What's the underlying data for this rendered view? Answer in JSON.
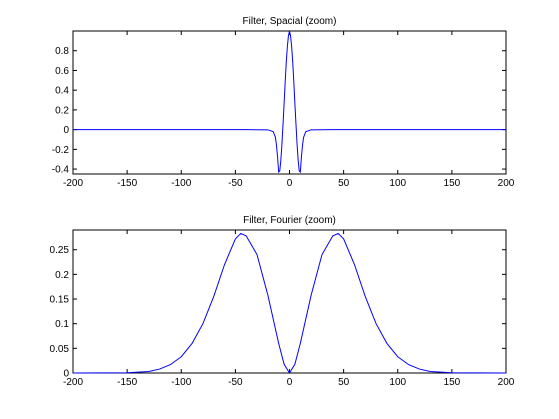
{
  "chart_data": [
    {
      "type": "line",
      "title": "Filter, Spacial (zoom)",
      "xlabel": "",
      "ylabel": "",
      "xlim": [
        -200,
        200
      ],
      "ylim": [
        -0.45,
        1.0
      ],
      "x_ticks": [
        -200,
        -150,
        -100,
        -50,
        0,
        50,
        100,
        150,
        200
      ],
      "y_ticks": [
        -0.4,
        -0.2,
        0,
        0.2,
        0.4,
        0.6,
        0.8
      ],
      "y_tick_labels": [
        "-0.4",
        "-0.2",
        "0",
        "0.2",
        "0.4",
        "0.6",
        "0.8"
      ],
      "grid": false,
      "line_color": "#0000ff",
      "series": [
        {
          "x": [
            -200,
            -100,
            -40,
            -20,
            -15,
            -13,
            -12,
            -11,
            -10,
            -9,
            -8,
            -7,
            -6,
            -5,
            -4,
            -3,
            -2,
            -1,
            0,
            1,
            2,
            3,
            4,
            5,
            6,
            7,
            8,
            9,
            10,
            11,
            12,
            13,
            15,
            20,
            40,
            100,
            200
          ],
          "y": [
            0,
            0,
            0,
            -0.002,
            -0.02,
            -0.08,
            -0.16,
            -0.28,
            -0.43,
            -0.42,
            -0.31,
            -0.15,
            0.05,
            0.26,
            0.48,
            0.68,
            0.84,
            0.95,
            1.0,
            0.95,
            0.84,
            0.68,
            0.48,
            0.26,
            0.05,
            -0.15,
            -0.31,
            -0.42,
            -0.43,
            -0.28,
            -0.16,
            -0.08,
            -0.02,
            -0.002,
            0,
            0,
            0
          ]
        }
      ]
    },
    {
      "type": "line",
      "title": "Filter, Fourier (zoom)",
      "xlabel": "",
      "ylabel": "",
      "xlim": [
        -200,
        200
      ],
      "ylim": [
        0,
        0.29
      ],
      "x_ticks": [
        -200,
        -150,
        -100,
        -50,
        0,
        50,
        100,
        150,
        200
      ],
      "y_ticks": [
        0,
        0.05,
        0.1,
        0.15,
        0.2,
        0.25
      ],
      "y_tick_labels": [
        "0",
        "0.05",
        "0.1",
        "0.15",
        "0.2",
        "0.25"
      ],
      "grid": false,
      "line_color": "#0000ff",
      "series": [
        {
          "x": [
            -200,
            -150,
            -130,
            -120,
            -110,
            -100,
            -90,
            -80,
            -70,
            -60,
            -50,
            -45,
            -40,
            -30,
            -20,
            -10,
            -5,
            0,
            5,
            10,
            20,
            30,
            40,
            45,
            50,
            60,
            70,
            80,
            90,
            100,
            110,
            120,
            130,
            150,
            200
          ],
          "y": [
            0,
            0.0005,
            0.003,
            0.008,
            0.017,
            0.033,
            0.06,
            0.1,
            0.155,
            0.22,
            0.272,
            0.283,
            0.278,
            0.24,
            0.158,
            0.06,
            0.018,
            0,
            0.018,
            0.06,
            0.158,
            0.24,
            0.278,
            0.283,
            0.272,
            0.22,
            0.155,
            0.1,
            0.06,
            0.033,
            0.017,
            0.008,
            0.003,
            0.0005,
            0
          ]
        }
      ]
    }
  ]
}
